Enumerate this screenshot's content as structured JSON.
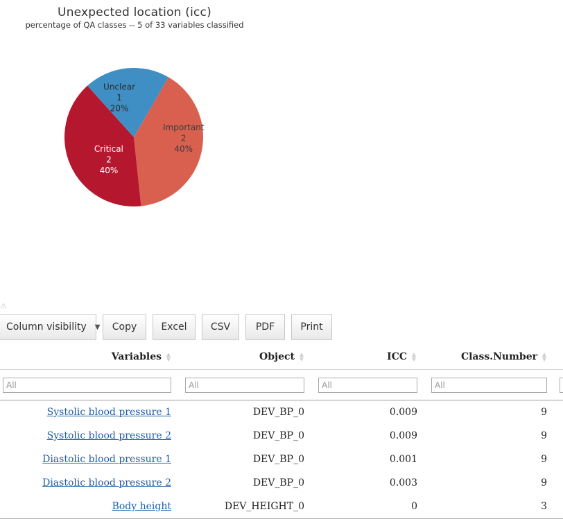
{
  "chart": {
    "title": "Unexpected location (icc)",
    "subtitle": "percentage of QA classes  -- 5 of 33 variables classified"
  },
  "chart_data": {
    "type": "pie",
    "title": "Unexpected location (icc)",
    "subtitle": "percentage of QA classes  -- 5 of 33 variables classified",
    "slices": [
      {
        "label": "Important",
        "count": "2",
        "percent": "40%",
        "value": 40,
        "color": "#d9604f",
        "text_color": "#3b3b3b"
      },
      {
        "label": "Critical",
        "count": "2",
        "percent": "40%",
        "value": 40,
        "color": "#b5172e",
        "text_color": "#ffffff"
      },
      {
        "label": "Unclear",
        "count": "1",
        "percent": "20%",
        "value": 20,
        "color": "#3f8fc4",
        "text_color": "#2b2b2b"
      }
    ],
    "start_angle_deg": -60,
    "direction": "clockwise"
  },
  "toolbar": {
    "column_visibility": "Column visibility",
    "copy": "Copy",
    "excel": "Excel",
    "csv": "CSV",
    "pdf": "PDF",
    "print": "Print"
  },
  "warning_icon": "warning-icon",
  "table": {
    "columns": [
      "Variables",
      "Object",
      "ICC",
      "Class.Number"
    ],
    "filter_placeholder": "All",
    "rows": [
      {
        "variable": "Systolic blood pressure 1",
        "object": "DEV_BP_0",
        "icc": "0.009",
        "class_number": "9"
      },
      {
        "variable": "Systolic blood pressure 2",
        "object": "DEV_BP_0",
        "icc": "0.009",
        "class_number": "9"
      },
      {
        "variable": "Diastolic blood pressure 1",
        "object": "DEV_BP_0",
        "icc": "0.001",
        "class_number": "9"
      },
      {
        "variable": "Diastolic blood pressure 2",
        "object": "DEV_BP_0",
        "icc": "0.003",
        "class_number": "9"
      },
      {
        "variable": "Body height",
        "object": "DEV_HEIGHT_0",
        "icc": "0",
        "class_number": "3"
      }
    ]
  },
  "colors": {
    "link": "#1f5fa8",
    "sort_icon": "#d0d0d0"
  }
}
